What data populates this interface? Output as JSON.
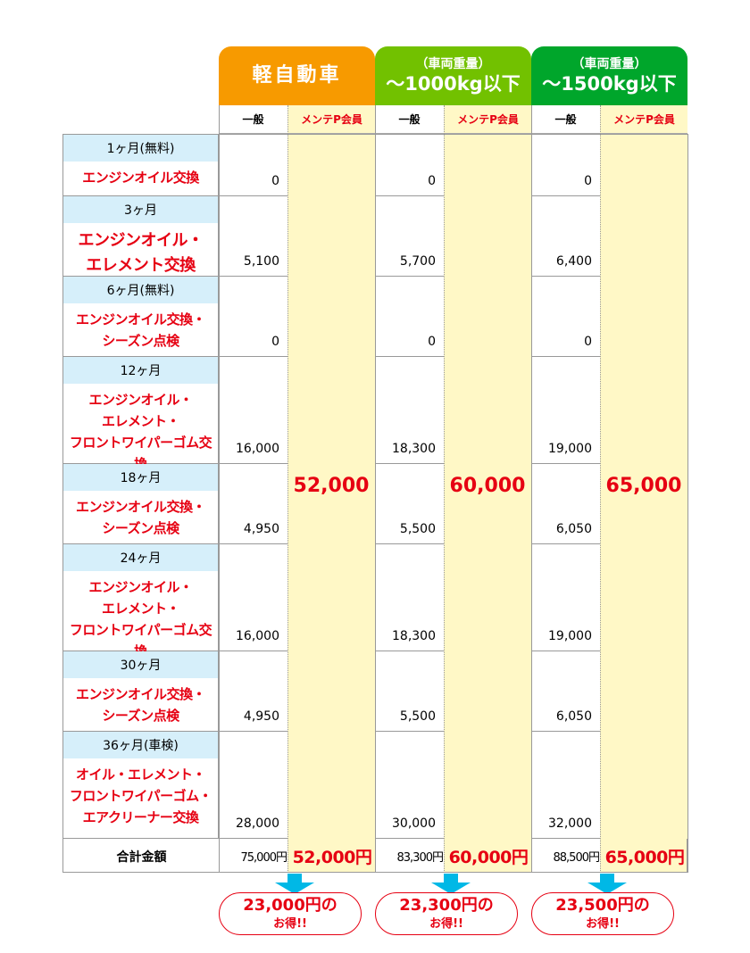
{
  "colors": {
    "kei": "#f79a00",
    "mid": "#72c100",
    "large": "#00a62b",
    "member_bg": "#fff8c6",
    "accent_red": "#e60012",
    "month_bg": "#d6effa",
    "arrow": "#00b8e6"
  },
  "headers": [
    {
      "line1": "",
      "line2": "軽自動車"
    },
    {
      "line1": "（車両重量）",
      "line2": "～1000kg以下"
    },
    {
      "line1": "（車両重量）",
      "line2": "～1500kg以下"
    }
  ],
  "sub_general": "一般",
  "sub_member": "メンテP会員",
  "rows": [
    {
      "month": "1ヶ月(無料)",
      "service": "エンジンオイル交換",
      "values": [
        "0",
        "0",
        "0"
      ]
    },
    {
      "month": "3ヶ月",
      "service": "エンジンオイル・\nエレメント交換",
      "values": [
        "5,100",
        "5,700",
        "6,400"
      ]
    },
    {
      "month": "6ヶ月(無料)",
      "service": "エンジンオイル交換・\nシーズン点検",
      "values": [
        "0",
        "0",
        "0"
      ]
    },
    {
      "month": "12ヶ月",
      "service": "エンジンオイル・\nエレメント・\nフロントワイパーゴム交換",
      "values": [
        "16,000",
        "18,300",
        "19,000"
      ]
    },
    {
      "month": "18ヶ月",
      "service": "エンジンオイル交換・\nシーズン点検",
      "values": [
        "4,950",
        "5,500",
        "6,050"
      ]
    },
    {
      "month": "24ヶ月",
      "service": "エンジンオイル・\nエレメント・\nフロントワイパーゴム交換",
      "values": [
        "16,000",
        "18,300",
        "19,000"
      ]
    },
    {
      "month": "30ヶ月",
      "service": "エンジンオイル交換・\nシーズン点検",
      "values": [
        "4,950",
        "5,500",
        "6,050"
      ]
    },
    {
      "month": "36ヶ月(車検)",
      "service": "オイル・エレメント・\nフロントワイパーゴム・\nエアクリーナー交換",
      "values": [
        "28,000",
        "30,000",
        "32,000"
      ]
    }
  ],
  "member_prices": [
    "52,000",
    "60,000",
    "65,000"
  ],
  "total": {
    "label": "合計金額",
    "general": [
      "75,000円",
      "83,300円",
      "88,500円"
    ],
    "member": [
      "52,000円",
      "60,000円",
      "65,000円"
    ]
  },
  "savings": [
    {
      "amount": "23,000円の",
      "note": "お得!!"
    },
    {
      "amount": "23,300円の",
      "note": "お得!!"
    },
    {
      "amount": "23,500円の",
      "note": "お得!!"
    }
  ]
}
